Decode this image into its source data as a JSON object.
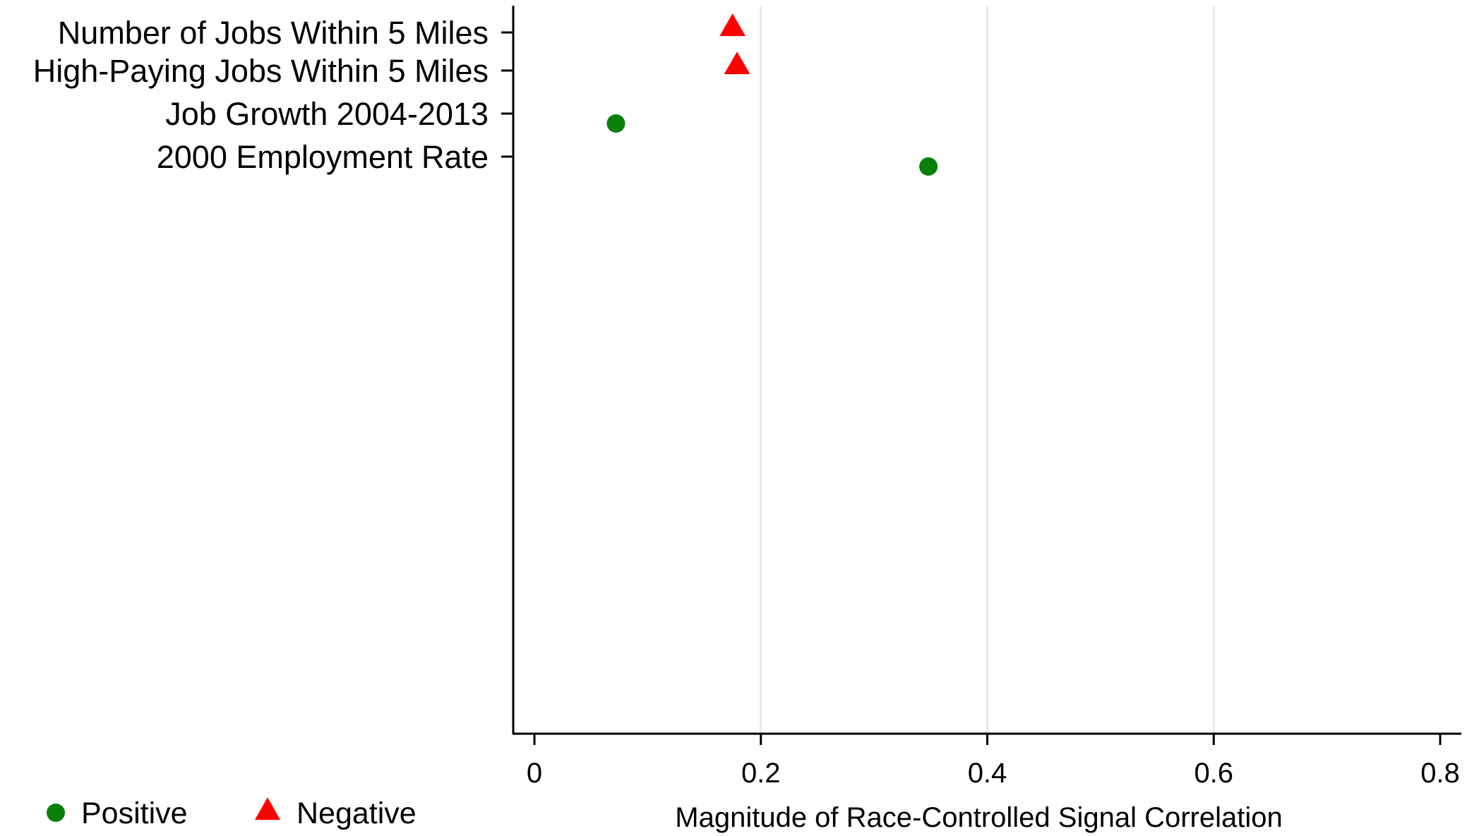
{
  "chart_data": {
    "type": "scatter",
    "title": "",
    "xlabel": "Magnitude of Race-Controlled Signal Correlation",
    "ylabel": "",
    "xlim": [
      0,
      0.8
    ],
    "x_ticks": [
      "0",
      "0.2",
      "0.4",
      "0.6",
      "0.8"
    ],
    "x_tick_values": [
      0,
      0.2,
      0.4,
      0.6,
      0.8
    ],
    "grid": "vertical",
    "legend_position": "bottom-left",
    "categories": [
      "Number of Jobs Within 5 Miles",
      "High-Paying Jobs Within 5 Miles",
      "Job Growth 2004-2013",
      "2000 Employment Rate"
    ],
    "points": [
      {
        "category": "Number of Jobs Within 5 Miles",
        "value": 0.175,
        "sign": "Negative"
      },
      {
        "category": "High-Paying Jobs Within 5 Miles",
        "value": 0.179,
        "sign": "Negative"
      },
      {
        "category": "Job Growth 2004-2013",
        "value": 0.072,
        "sign": "Positive"
      },
      {
        "category": "2000 Employment Rate",
        "value": 0.348,
        "sign": "Positive"
      }
    ],
    "series": [
      {
        "name": "Positive",
        "marker": "circle",
        "color": "#0a7f0a"
      },
      {
        "name": "Negative",
        "marker": "triangle",
        "color": "#ff0000"
      }
    ]
  },
  "colors": {
    "axis": "#000000",
    "grid": "#e2ecec",
    "positive": "#0a7f0a",
    "negative": "#ff0000"
  }
}
